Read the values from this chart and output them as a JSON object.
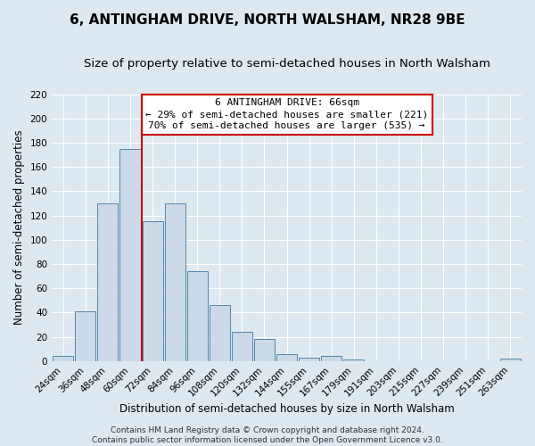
{
  "title": "6, ANTINGHAM DRIVE, NORTH WALSHAM, NR28 9BE",
  "subtitle": "Size of property relative to semi-detached houses in North Walsham",
  "xlabel": "Distribution of semi-detached houses by size in North Walsham",
  "ylabel": "Number of semi-detached properties",
  "bin_labels": [
    "24sqm",
    "36sqm",
    "48sqm",
    "60sqm",
    "72sqm",
    "84sqm",
    "96sqm",
    "108sqm",
    "120sqm",
    "132sqm",
    "144sqm",
    "155sqm",
    "167sqm",
    "179sqm",
    "191sqm",
    "203sqm",
    "215sqm",
    "227sqm",
    "239sqm",
    "251sqm",
    "263sqm"
  ],
  "bin_values": [
    4,
    41,
    130,
    175,
    115,
    130,
    74,
    46,
    24,
    18,
    6,
    3,
    4,
    1,
    0,
    0,
    0,
    0,
    0,
    0,
    2
  ],
  "bar_color": "#ccd9e8",
  "bar_edge_color": "#5588aa",
  "vline_x_index": 4,
  "vline_color": "#cc0000",
  "ylim": [
    0,
    220
  ],
  "yticks": [
    0,
    20,
    40,
    60,
    80,
    100,
    120,
    140,
    160,
    180,
    200,
    220
  ],
  "annotation_title": "6 ANTINGHAM DRIVE: 66sqm",
  "annotation_line1": "← 29% of semi-detached houses are smaller (221)",
  "annotation_line2": "70% of semi-detached houses are larger (535) →",
  "annotation_box_color": "#ffffff",
  "annotation_box_edge": "#cc0000",
  "footer_line1": "Contains HM Land Registry data © Crown copyright and database right 2024.",
  "footer_line2": "Contains public sector information licensed under the Open Government Licence v3.0.",
  "background_color": "#dde8f0",
  "plot_bg_color": "#dde8f0",
  "grid_color": "#ffffff",
  "title_fontsize": 11,
  "subtitle_fontsize": 9.5,
  "axis_label_fontsize": 8.5,
  "tick_fontsize": 7.5,
  "footer_fontsize": 6.5,
  "annotation_fontsize": 8
}
